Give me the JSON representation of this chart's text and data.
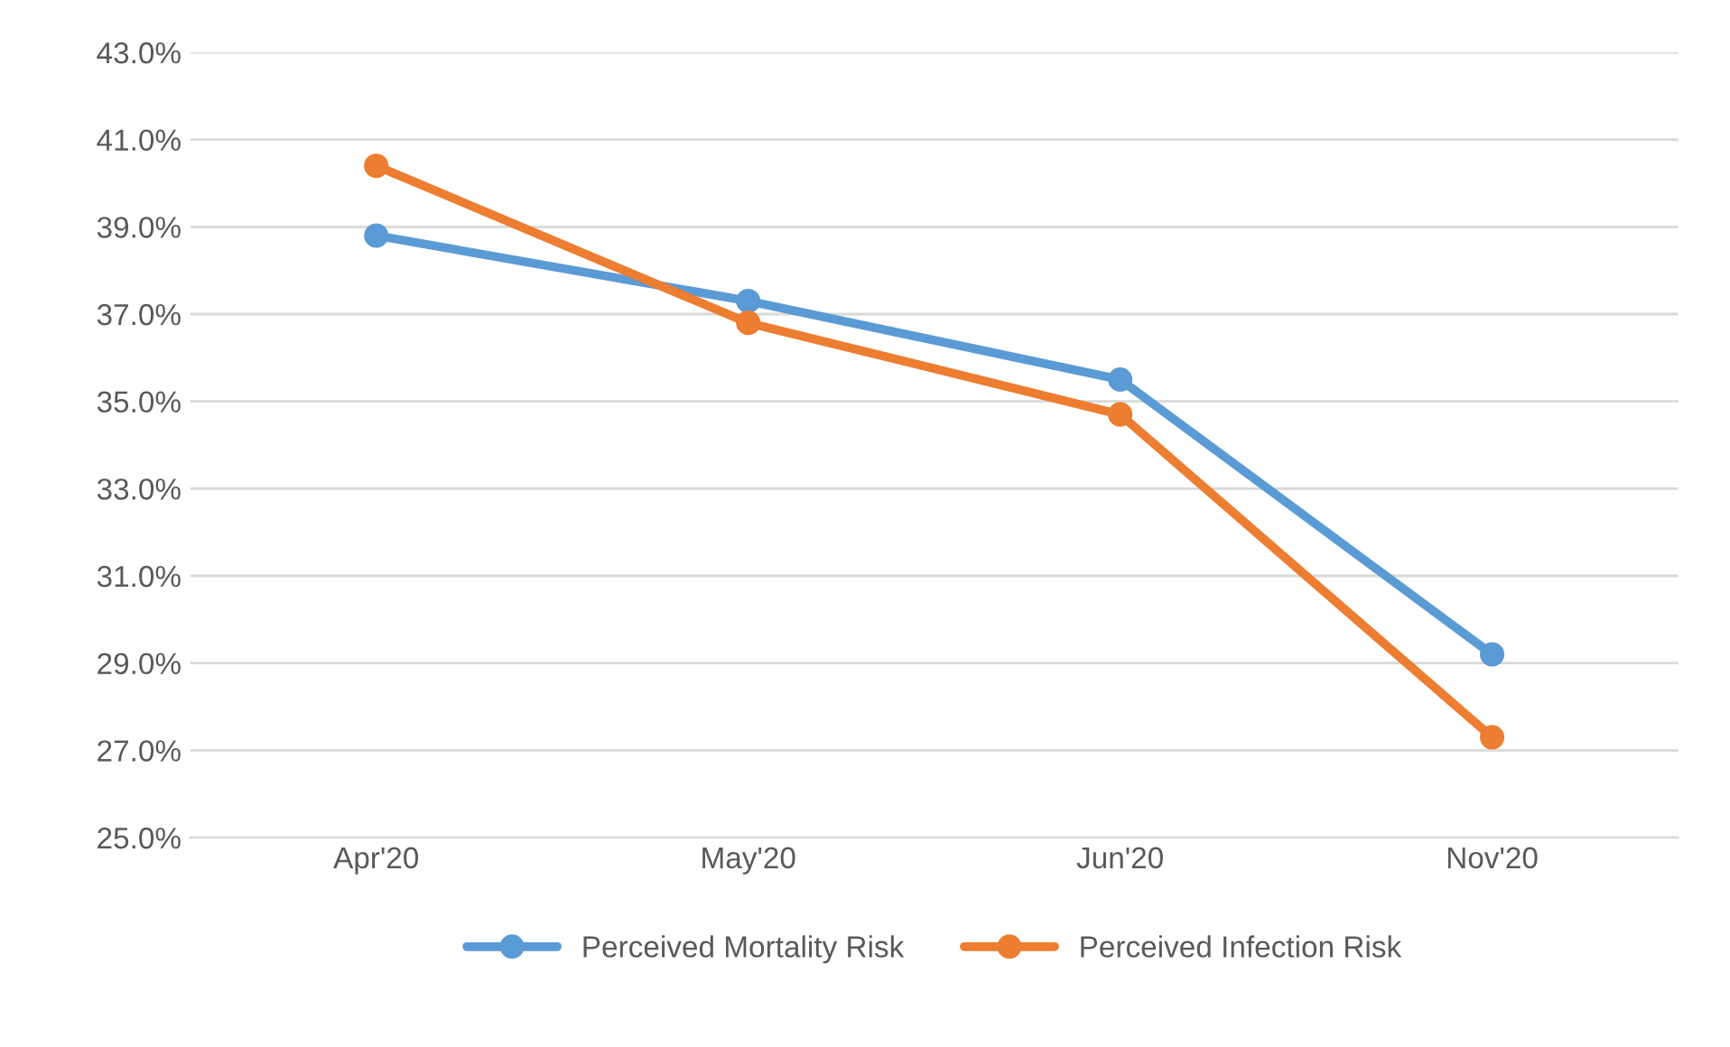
{
  "chart_data": {
    "type": "line",
    "categories": [
      "Apr'20",
      "May'20",
      "Jun'20",
      "Nov'20"
    ],
    "series": [
      {
        "name": "Perceived Mortality Risk",
        "color": "#5b9bd5",
        "values": [
          38.8,
          37.3,
          35.5,
          29.2
        ]
      },
      {
        "name": "Perceived Infection Risk",
        "color": "#ed7d31",
        "values": [
          40.4,
          36.8,
          34.7,
          27.3
        ]
      }
    ],
    "ylim": [
      25,
      43
    ],
    "yticks": [
      {
        "value": 25,
        "label": "25.0%"
      },
      {
        "value": 27,
        "label": "27.0%"
      },
      {
        "value": 29,
        "label": "29.0%"
      },
      {
        "value": 31,
        "label": "31.0%"
      },
      {
        "value": 33,
        "label": "33.0%"
      },
      {
        "value": 35,
        "label": "35.0%"
      },
      {
        "value": 37,
        "label": "37.0%"
      },
      {
        "value": 39,
        "label": "39.0%"
      },
      {
        "value": 41,
        "label": "41.0%"
      },
      {
        "value": 43,
        "label": "43.0%"
      }
    ],
    "grid": "y",
    "legend": "bottom",
    "marker": "circle",
    "line_style": "solid"
  }
}
